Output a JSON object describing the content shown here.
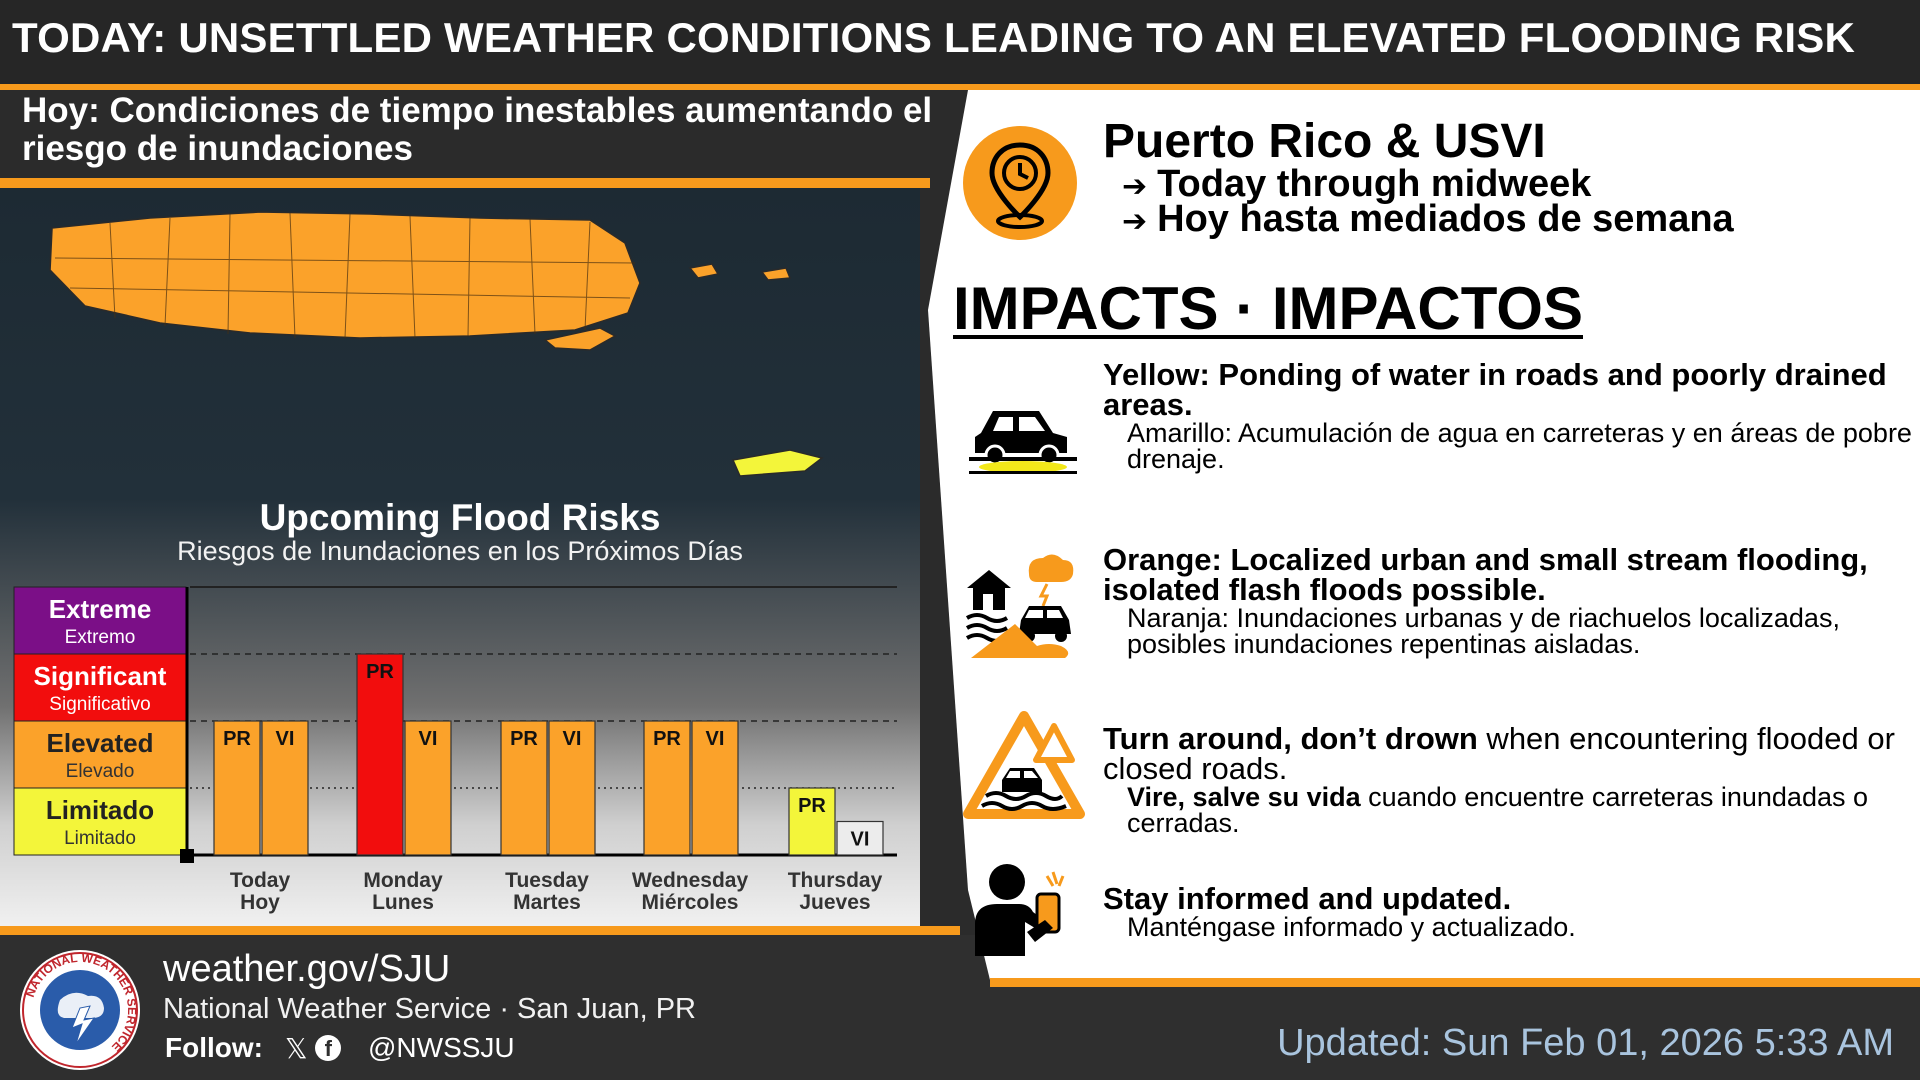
{
  "header": {
    "title": "TODAY: UNSETTLED WEATHER CONDITIONS LEADING TO AN ELEVATED FLOODING RISK",
    "subtitle_es": "Hoy: Condiciones de tiempo inestables aumentando el riesgo de inundaciones"
  },
  "right": {
    "region": "Puerto Rico & USVI",
    "period_en": "Today through midweek",
    "period_es": "Hoy hasta mediados de semana",
    "impacts_title": "IMPACTS · IMPACTOS",
    "items": [
      {
        "en": "Yellow: Ponding of water in roads and poorly drained areas.",
        "es": "Amarillo: Acumulación de agua en carreteras y en áreas de pobre drenaje.",
        "icon": "car-ponding-icon"
      },
      {
        "en": "Orange: Localized urban and small stream flooding, isolated flash floods possible.",
        "es": "Naranja: Inundaciones urbanas y de riachuelos localizadas, posibles inundaciones repentinas aisladas.",
        "icon": "urban-flood-icon"
      },
      {
        "en_bold": "Turn around, don’t drown",
        "en_rest": " when encountering flooded or closed roads.",
        "es_bold": "Vire, salve su vida",
        "es_rest": " cuando encuentre carreteras inundadas o cerradas.",
        "icon": "flooded-road-warning-icon"
      },
      {
        "en": "Stay informed and updated.",
        "es": "Manténgase informado y actualizado.",
        "icon": "person-phone-icon"
      }
    ]
  },
  "chart_data": {
    "type": "bar",
    "title": "Upcoming Flood Risks",
    "subtitle": "Riesgos de Inundaciones en los Próximos Días",
    "levels": [
      {
        "en": "Limitado",
        "es": "Limitado",
        "color": "#f3f53a"
      },
      {
        "en": "Elevated",
        "es": "Elevado",
        "color": "#fba22a"
      },
      {
        "en": "Significant",
        "es": "Significativo",
        "color": "#f20d0d"
      },
      {
        "en": "Extreme",
        "es": "Extremo",
        "color": "#7b0f87"
      }
    ],
    "categories": [
      {
        "en": "Today",
        "es": "Hoy"
      },
      {
        "en": "Monday",
        "es": "Lunes"
      },
      {
        "en": "Tuesday",
        "es": "Martes"
      },
      {
        "en": "Wednesday",
        "es": "Miércoles"
      },
      {
        "en": "Thursday",
        "es": "Jueves"
      }
    ],
    "series": [
      {
        "name": "PR",
        "values": [
          2,
          3,
          2,
          2,
          1
        ]
      },
      {
        "name": "VI",
        "values": [
          2,
          2,
          2,
          2,
          0.5
        ]
      }
    ]
  },
  "footer": {
    "url": "weather.gov/SJU",
    "org": "National Weather Service · San Juan, PR",
    "follow": "Follow:",
    "handle": "@NWSSJU",
    "updated": "Updated: Sun Feb 01, 2026 5:33 AM",
    "logo_text": "NATIONAL WEATHER SERVICE"
  }
}
